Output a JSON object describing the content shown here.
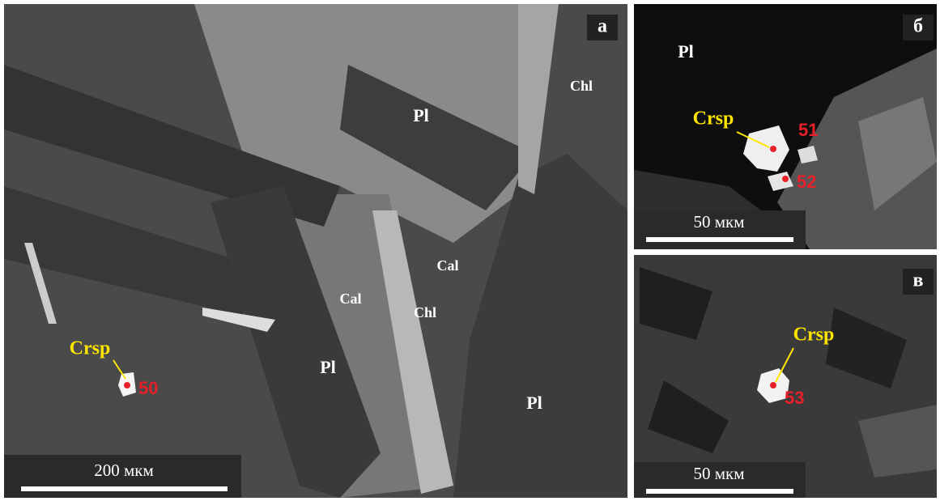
{
  "panels": [
    {
      "letter": "а",
      "scale_bar": "200 мкм",
      "labels": [
        "Pl",
        "Chl",
        "Cal",
        "Cal",
        "Chl",
        "Pl",
        "Pl"
      ],
      "mineral": "Crsp",
      "point": "50"
    },
    {
      "letter": "б",
      "scale_bar": "50 мкм",
      "labels": [
        "Pl"
      ],
      "mineral": "Crsp",
      "points": [
        "51",
        "52"
      ]
    },
    {
      "letter": "в",
      "scale_bar": "50 мкм",
      "mineral": "Crsp",
      "point": "53"
    }
  ]
}
